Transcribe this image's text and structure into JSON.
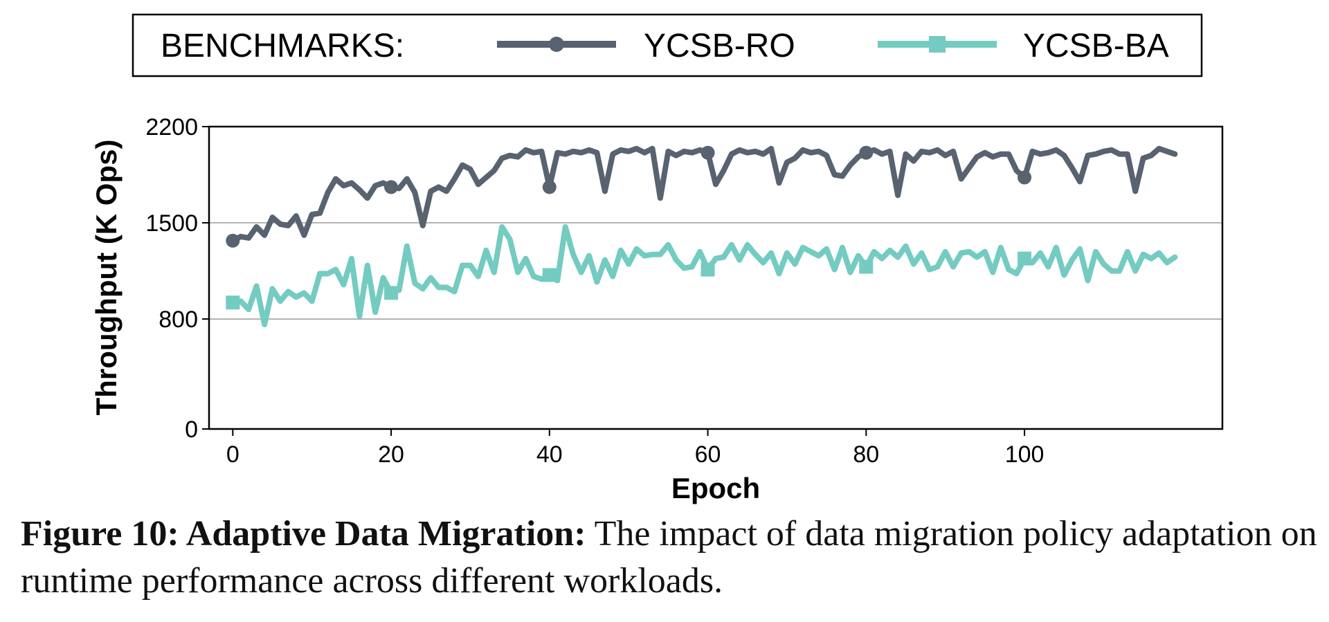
{
  "legend": {
    "title": "BENCHMARKS:",
    "entries": [
      {
        "label": "YCSB-RO",
        "color": "#586270",
        "marker": "circle"
      },
      {
        "label": "YCSB-BA",
        "color": "#73cbc1",
        "marker": "square"
      }
    ]
  },
  "caption": {
    "label": "Figure 10: Adaptive Data Migration:",
    "text": "The impact of data migration policy adaptation on runtime performance across different workloads."
  },
  "chart_data": {
    "type": "line",
    "xlabel": "Epoch",
    "ylabel": "Throughput (K Ops)",
    "xlim": [
      -3,
      125
    ],
    "ylim": [
      0,
      2200
    ],
    "xticks": [
      0,
      20,
      40,
      60,
      80,
      100
    ],
    "yticks": [
      0,
      800,
      1500,
      2200
    ],
    "grid": "horizontal",
    "legend_position": "top",
    "series": [
      {
        "name": "YCSB-RO",
        "color": "#586270",
        "marker": "circle",
        "marker_every": 20,
        "values": [
          1370,
          1400,
          1390,
          1470,
          1410,
          1540,
          1490,
          1480,
          1550,
          1410,
          1560,
          1570,
          1720,
          1820,
          1770,
          1790,
          1740,
          1680,
          1770,
          1790,
          1760,
          1750,
          1820,
          1720,
          1480,
          1730,
          1760,
          1730,
          1820,
          1920,
          1890,
          1780,
          1830,
          1880,
          1970,
          1990,
          1980,
          2030,
          2010,
          2020,
          1760,
          2010,
          2000,
          2020,
          2010,
          2030,
          2010,
          1730,
          2000,
          2030,
          2020,
          2040,
          2010,
          2040,
          1680,
          2020,
          1990,
          2020,
          2010,
          2030,
          2010,
          1780,
          1880,
          2000,
          2030,
          2010,
          2020,
          2000,
          2040,
          1790,
          1940,
          1970,
          2030,
          2010,
          2020,
          1990,
          1850,
          1840,
          1920,
          1980,
          2010,
          2030,
          2000,
          2020,
          1700,
          2000,
          1950,
          2020,
          2010,
          2030,
          1990,
          2020,
          1820,
          1900,
          1980,
          2010,
          1980,
          2000,
          2000,
          1880,
          1830,
          2020,
          2000,
          2010,
          2030,
          1990,
          1900,
          1800,
          1990,
          2000,
          2020,
          2030,
          2000,
          2000,
          1730,
          1970,
          1990,
          2040,
          2020,
          2000
        ]
      },
      {
        "name": "YCSB-BA",
        "color": "#73cbc1",
        "marker": "square",
        "marker_every": 20,
        "values": [
          920,
          930,
          870,
          1040,
          760,
          1020,
          930,
          1000,
          960,
          990,
          930,
          1130,
          1130,
          1160,
          1050,
          1240,
          820,
          1190,
          850,
          1100,
          990,
          1010,
          1330,
          1060,
          1020,
          1100,
          1030,
          1030,
          1000,
          1190,
          1190,
          1110,
          1300,
          1140,
          1470,
          1380,
          1140,
          1240,
          1110,
          1090,
          1120,
          1080,
          1470,
          1270,
          1140,
          1260,
          1070,
          1230,
          1110,
          1300,
          1200,
          1310,
          1260,
          1270,
          1270,
          1340,
          1230,
          1170,
          1180,
          1290,
          1160,
          1240,
          1250,
          1340,
          1230,
          1340,
          1270,
          1210,
          1280,
          1130,
          1280,
          1200,
          1320,
          1290,
          1260,
          1310,
          1160,
          1320,
          1140,
          1260,
          1180,
          1290,
          1240,
          1300,
          1250,
          1330,
          1200,
          1280,
          1160,
          1180,
          1290,
          1180,
          1280,
          1290,
          1250,
          1290,
          1140,
          1320,
          1160,
          1130,
          1240,
          1210,
          1280,
          1180,
          1320,
          1120,
          1230,
          1310,
          1080,
          1290,
          1200,
          1150,
          1150,
          1290,
          1150,
          1270,
          1240,
          1280,
          1210,
          1250
        ]
      }
    ]
  }
}
